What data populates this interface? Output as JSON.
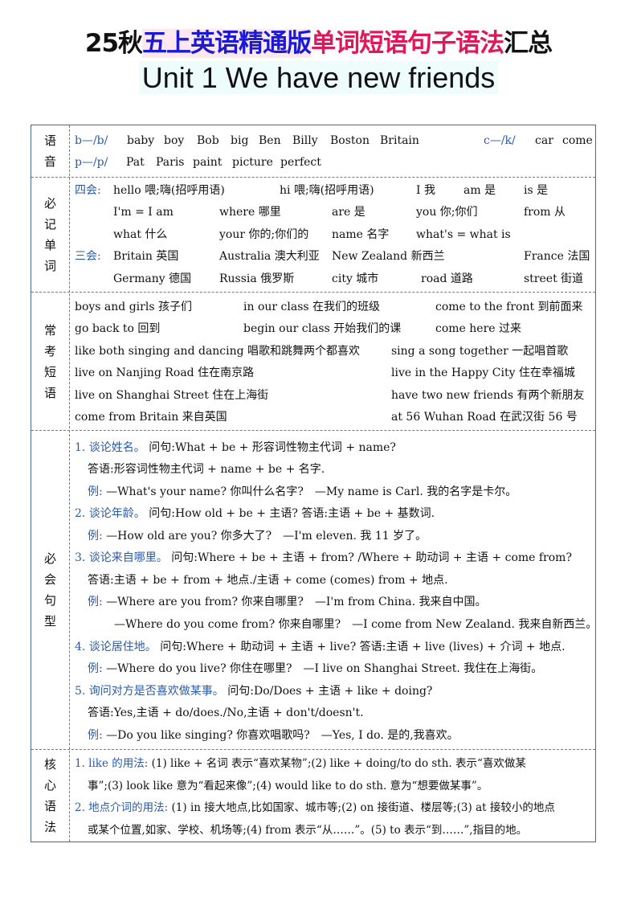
{
  "title": {
    "p1": "25秋",
    "p2": "五上英语精通版",
    "p3": "单词短语句子语法",
    "p4": "汇总",
    "line2": "Unit 1 We have new friends"
  },
  "sections": {
    "phonics": [
      "语",
      "音"
    ],
    "words": [
      "必",
      "记",
      "单",
      "词"
    ],
    "phrases": [
      "常",
      "考",
      "短",
      "语"
    ],
    "sentences": [
      "必",
      "会",
      "句",
      "型"
    ],
    "grammar": [
      "核",
      "心",
      "语",
      "法"
    ]
  },
  "phonics": {
    "b_label": "b—/b/",
    "b_words": [
      "baby",
      "boy",
      "Bob",
      "big",
      "Ben",
      "Billy",
      "Boston",
      "Britain"
    ],
    "c_label": "c—/k/",
    "c_words": [
      "car",
      "come"
    ],
    "p_label": "p—/p/",
    "p_words": [
      "Pat",
      "Paris",
      "paint",
      "picture",
      "perfect"
    ]
  },
  "words": {
    "four_label": "四会:",
    "three_label": "三会:",
    "r1": [
      "hello 喂;嗨(招呼用语)",
      "hi 喂;嗨(招呼用语)",
      "I 我",
      "am 是",
      "is 是"
    ],
    "r2": [
      "I'm = I am",
      "where 哪里",
      "are 是",
      "you 你;你们",
      "from 从"
    ],
    "r3": [
      "what 什么",
      "your 你的;你们的",
      "name 名字",
      "what's = what is"
    ],
    "r4": [
      "Britain 英国",
      "Australia 澳大利亚",
      "New Zealand 新西兰",
      "France 法国"
    ],
    "r5": [
      "Germany 德国",
      "Russia 俄罗斯",
      "city 城市",
      "road 道路",
      "street 街道"
    ]
  },
  "phrases": {
    "r1": [
      "boys and girls 孩子们",
      "in our class 在我们的班级",
      "come to the front 到前面来"
    ],
    "r2": [
      "go back to 回到",
      "begin our class 开始我们的课",
      "come here 过来"
    ],
    "r3": [
      "like both singing and dancing 唱歌和跳舞两个都喜欢",
      "sing a song together 一起唱首歌"
    ],
    "r4": [
      "live on Nanjing Road 住在南京路",
      "live in the Happy City 住在幸福城"
    ],
    "r5": [
      "live on Shanghai Street 住在上海街",
      "have two new friends 有两个新朋友"
    ],
    "r6": [
      "come from Britain 来自英国",
      "at 56 Wuhan Road 在武汉街 56 号"
    ]
  },
  "sentences": [
    {
      "h": "1. 谈论姓名。",
      "t": " 问句:What + be + 形容词性物主代词 + name?"
    },
    {
      "h": "",
      "t": "答语:形容词性物主代词 + name + be + 名字."
    },
    {
      "h": "例:",
      "t": " —What's your name? 你叫什么名字?　—My name is Carl. 我的名字是卡尔。"
    },
    {
      "h": "2. 谈论年龄。",
      "t": " 问句:How old + be + 主语? 答语:主语 + be + 基数词."
    },
    {
      "h": "例:",
      "t": " —How old are you? 你多大了?　—I'm eleven. 我 11 岁了。"
    },
    {
      "h": "3. 谈论来自哪里。",
      "t": " 问句:Where + be + 主语 + from? /Where + 助动词 + 主语 + come from?"
    },
    {
      "h": "",
      "t": "答语:主语 + be + from + 地点./主语 + come (comes) from + 地点."
    },
    {
      "h": "例:",
      "t": " —Where are you from? 你来自哪里?　—I'm from China. 我来自中国。"
    },
    {
      "h": "",
      "t": "—Where do you come from? 你来自哪里?　—I come from New Zealand. 我来自新西兰。"
    },
    {
      "h": "4. 谈论居住地。",
      "t": " 问句:Where + 助动词 + 主语 + live? 答语:主语 + live (lives) + 介词 + 地点."
    },
    {
      "h": "例:",
      "t": " —Where do you live? 你住在哪里?　—I live on Shanghai Street. 我住在上海街。"
    },
    {
      "h": "5. 询问对方是否喜欢做某事。",
      "t": " 问句:Do/Does + 主语 + like + doing?"
    },
    {
      "h": "",
      "t": "答语:Yes,主语 + do/does./No,主语 + don't/doesn't."
    },
    {
      "h": "例:",
      "t": " —Do you like singing? 你喜欢唱歌吗?　—Yes, I do. 是的,我喜欢。"
    }
  ],
  "grammar": [
    {
      "h": "1. like 的用法:",
      "t": " (1) like + 名词 表示“喜欢某物”;(2) like + doing/to do sth. 表示“喜欢做某"
    },
    {
      "h": "",
      "t": "事”;(3) look like 意为“看起来像”;(4) would like to do sth. 意为“想要做某事”。"
    },
    {
      "h": "2. 地点介词的用法:",
      "t": " (1) in 接大地点,比如国家、城市等;(2) on 接街道、楼层等;(3) at 接较小的地点"
    },
    {
      "h": "",
      "t": "或某个位置,如家、学校、机场等;(4) from 表示“从……”。(5) to 表示“到……”,指目的地。"
    }
  ]
}
